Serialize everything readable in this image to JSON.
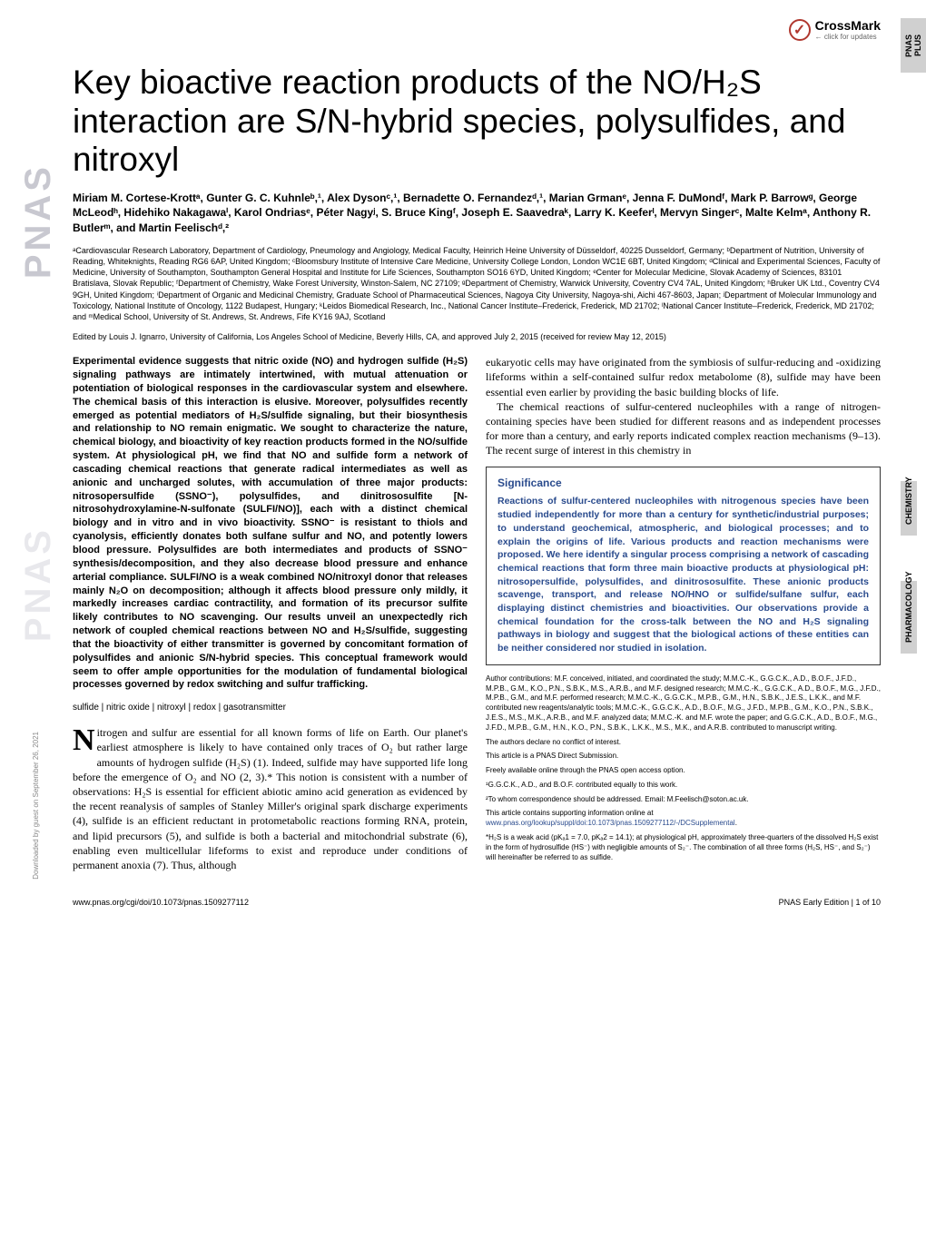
{
  "sideLabel1": "PNAS",
  "sideLabel2": "PNAS",
  "crossmark": {
    "text": "CrossMark",
    "sub": "← click for updates"
  },
  "tabs": {
    "t1": "PNAS PLUS",
    "t2": "CHEMISTRY",
    "t3": "PHARMACOLOGY"
  },
  "title": "Key bioactive reaction products of the NO/H₂S interaction are S/N-hybrid species, polysulfides, and nitroxyl",
  "authors": "Miriam M. Cortese-Krottᵃ, Gunter G. C. Kuhnleᵇ,¹, Alex Dysonᶜ,¹, Bernadette O. Fernandezᵈ,¹, Marian Grmanᵉ, Jenna F. DuMondᶠ, Mark P. Barrowᵍ, George McLeodʰ, Hidehiko Nakagawaⁱ, Karol Ondriasᵉ, Péter Nagyʲ, S. Bruce Kingᶠ, Joseph E. Saavedraᵏ, Larry K. Keeferˡ, Mervyn Singerᶜ, Malte Kelmᵃ, Anthony R. Butlerᵐ, and Martin Feelischᵈ,²",
  "affiliations": "ᵃCardiovascular Research Laboratory, Department of Cardiology, Pneumology and Angiology, Medical Faculty, Heinrich Heine University of Düsseldorf, 40225 Dusseldorf, Germany; ᵇDepartment of Nutrition, University of Reading, Whiteknights, Reading RG6 6AP, United Kingdom; ᶜBloomsbury Institute of Intensive Care Medicine, University College London, London WC1E 6BT, United Kingdom; ᵈClinical and Experimental Sciences, Faculty of Medicine, University of Southampton, Southampton General Hospital and Institute for Life Sciences, Southampton SO16 6YD, United Kingdom; ᵉCenter for Molecular Medicine, Slovak Academy of Sciences, 83101 Bratislava, Slovak Republic; ᶠDepartment of Chemistry, Wake Forest University, Winston-Salem, NC 27109; ᵍDepartment of Chemistry, Warwick University, Coventry CV4 7AL, United Kingdom; ʰBruker UK Ltd., Coventry CV4 9GH, United Kingdom; ⁱDepartment of Organic and Medicinal Chemistry, Graduate School of Pharmaceutical Sciences, Nagoya City University, Nagoya-shi, Aichi 467-8603, Japan; ʲDepartment of Molecular Immunology and Toxicology, National Institute of Oncology, 1122 Budapest, Hungary; ᵏLeidos Biomedical Research, Inc., National Cancer Institute–Frederick, Frederick, MD 21702; ˡNational Cancer Institute–Frederick, Frederick, MD 21702; and ᵐMedical School, University of St. Andrews, St. Andrews, Fife KY16 9AJ, Scotland",
  "edited": "Edited by Louis J. Ignarro, University of California, Los Angeles School of Medicine, Beverly Hills, CA, and approved July 2, 2015 (received for review May 12, 2015)",
  "abstract": "Experimental evidence suggests that nitric oxide (NO) and hydrogen sulfide (H₂S) signaling pathways are intimately intertwined, with mutual attenuation or potentiation of biological responses in the cardiovascular system and elsewhere. The chemical basis of this interaction is elusive. Moreover, polysulfides recently emerged as potential mediators of H₂S/sulfide signaling, but their biosynthesis and relationship to NO remain enigmatic. We sought to characterize the nature, chemical biology, and bioactivity of key reaction products formed in the NO/sulfide system. At physiological pH, we find that NO and sulfide form a network of cascading chemical reactions that generate radical intermediates as well as anionic and uncharged solutes, with accumulation of three major products: nitrosopersulfide (SSNO⁻), polysulfides, and dinitrososulfite [N-nitrosohydroxylamine-N-sulfonate (SULFI/NO)], each with a distinct chemical biology and in vitro and in vivo bioactivity. SSNO⁻ is resistant to thiols and cyanolysis, efficiently donates both sulfane sulfur and NO, and potently lowers blood pressure. Polysulfides are both intermediates and products of SSNO⁻ synthesis/decomposition, and they also decrease blood pressure and enhance arterial compliance. SULFI/NO is a weak combined NO/nitroxyl donor that releases mainly N₂O on decomposition; although it affects blood pressure only mildly, it markedly increases cardiac contractility, and formation of its precursor sulfite likely contributes to NO scavenging. Our results unveil an unexpectedly rich network of coupled chemical reactions between NO and H₂S/sulfide, suggesting that the bioactivity of either transmitter is governed by concomitant formation of polysulfides and anionic S/N-hybrid species. This conceptual framework would seem to offer ample opportunities for the modulation of fundamental biological processes governed by redox switching and sulfur trafficking.",
  "keywords": "sulfide | nitric oxide | nitroxyl | redox | gasotransmitter",
  "bodyLeft": "itrogen and sulfur are essential for all known forms of life on Earth. Our planet's earliest atmosphere is likely to have contained only traces of O₂ but rather large amounts of hydrogen sulfide (H₂S) (1). Indeed, sulfide may have supported life long before the emergence of O₂ and NO (2, 3).* This notion is consistent with a number of observations: H₂S is essential for efficient abiotic amino acid generation as evidenced by the recent reanalysis of samples of Stanley Miller's original spark discharge experiments (4), sulfide is an efficient reductant in protometabolic reactions forming RNA, protein, and lipid precursors (5), and sulfide is both a bacterial and mitochondrial substrate (6), enabling even multicellular lifeforms to exist and reproduce under conditions of permanent anoxia (7). Thus, although",
  "bodyRight1": "eukaryotic cells may have originated from the symbiosis of sulfur-reducing and -oxidizing lifeforms within a self-contained sulfur redox metabolome (8), sulfide may have been essential even earlier by providing the basic building blocks of life.",
  "bodyRight2": "The chemical reactions of sulfur-centered nucleophiles with a range of nitrogen-containing species have been studied for different reasons and as independent processes for more than a century, and early reports indicated complex reaction mechanisms (9–13). The recent surge of interest in this chemistry in",
  "sigTitle": "Significance",
  "sigText": "Reactions of sulfur-centered nucleophiles with nitrogenous species have been studied independently for more than a century for synthetic/industrial purposes; to understand geochemical, atmospheric, and biological processes; and to explain the origins of life. Various products and reaction mechanisms were proposed. We here identify a singular process comprising a network of cascading chemical reactions that form three main bioactive products at physiological pH: nitrosopersulfide, polysulfides, and dinitrososulfite. These anionic products scavenge, transport, and release NO/HNO or sulfide/sulfane sulfur, each displaying distinct chemistries and bioactivities. Our observations provide a chemical foundation for the cross-talk between the NO and H₂S signaling pathways in biology and suggest that the biological actions of these entities can be neither considered nor studied in isolation.",
  "credits": {
    "c1": "Author contributions: M.F. conceived, initiated, and coordinated the study; M.M.C.-K., G.G.C.K., A.D., B.O.F., J.F.D., M.P.B., G.M., K.O., P.N., S.B.K., M.S., A.R.B., and M.F. designed research; M.M.C.-K., G.G.C.K., A.D., B.O.F., M.G., J.F.D., M.P.B., G.M., and M.F. performed research; M.M.C.-K., G.G.C.K., M.P.B., G.M., H.N., S.B.K., J.E.S., L.K.K., and M.F. contributed new reagents/analytic tools; M.M.C.-K., G.G.C.K., A.D., B.O.F., M.G., J.F.D., M.P.B., G.M., K.O., P.N., S.B.K., J.E.S., M.S., M.K., A.R.B., and M.F. analyzed data; M.M.C.-K. and M.F. wrote the paper; and G.G.C.K., A.D., B.O.F., M.G., J.F.D., M.P.B., G.M., H.N., K.O., P.N., S.B.K., L.K.K., M.S., M.K., and A.R.B. contributed to manuscript writing.",
    "c2": "The authors declare no conflict of interest.",
    "c3": "This article is a PNAS Direct Submission.",
    "c4": "Freely available online through the PNAS open access option.",
    "c5": "¹G.G.C.K., A.D., and B.O.F. contributed equally to this work.",
    "c6": "²To whom correspondence should be addressed. Email: M.Feelisch@soton.ac.uk.",
    "c7a": "This article contains supporting information online at ",
    "c7b": "www.pnas.org/lookup/suppl/doi:10.1073/pnas.1509277112/-/DCSupplemental",
    "c7c": ".",
    "c8": "*H₂S is a weak acid (pKₐ1 = 7.0, pKₐ2 = 14.1); at physiological pH, approximately three-quarters of the dissolved H₂S exist in the form of hydrosulfide (HS⁻) with negligible amounts of S₂⁻. The combination of all three forms (H₂S, HS⁻, and S₂⁻) will hereinafter be referred to as sulfide."
  },
  "footer": {
    "left": "www.pnas.org/cgi/doi/10.1073/pnas.1509277112",
    "right": "PNAS Early Edition | 1 of 10"
  },
  "dlNote": "Downloaded by guest on September 26, 2021"
}
